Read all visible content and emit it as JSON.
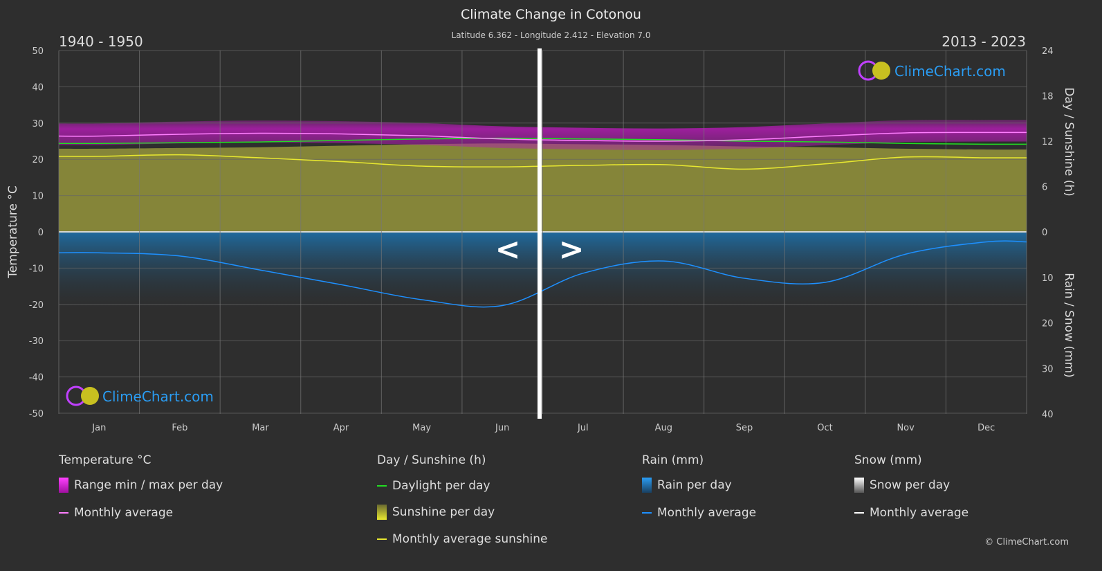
{
  "header": {
    "title": "Climate Change in Cotonou",
    "subtitle": "Latitude 6.362 - Longitude 2.412 - Elevation 7.0",
    "period_left": "1940 - 1950",
    "period_right": "2013 - 2023",
    "nav_prev": "<",
    "nav_next": ">"
  },
  "watermark": "ClimeChart.com",
  "copyright": "© ClimeChart.com",
  "colors": {
    "background": "#2e2e2e",
    "temperature_avg": "#ff7fff",
    "temperature_range": "#c21ec2",
    "daylight": "#22dd22",
    "sunshine_fill": "#8a8a3a",
    "sunshine_avg": "#e8e830",
    "rain_fill": "#1f6a9e",
    "rain_avg": "#1e90ff",
    "snow": "#ffffff"
  },
  "chart_data": {
    "type": "line",
    "categories": [
      "Jan",
      "Feb",
      "Mar",
      "Apr",
      "May",
      "Jun",
      "Jul",
      "Aug",
      "Sep",
      "Oct",
      "Nov",
      "Dec"
    ],
    "left_axis": {
      "label": "Temperature °C",
      "ylim": [
        -50,
        50
      ],
      "ticks": [
        50,
        40,
        30,
        20,
        10,
        0,
        -10,
        -20,
        -30,
        -40,
        -50
      ]
    },
    "right_axis_top": {
      "label": "Day / Sunshine (h)",
      "ylim": [
        0,
        24
      ],
      "ticks": [
        24,
        18,
        12,
        6,
        0
      ]
    },
    "right_axis_bottom": {
      "label": "Rain / Snow (mm)",
      "ylim": [
        0,
        40
      ],
      "ticks": [
        0,
        10,
        20,
        30,
        40
      ]
    },
    "grid": true,
    "series": [
      {
        "key": "temp",
        "values": [
          26.4,
          26.9,
          27.2,
          27.0,
          26.5,
          25.6,
          25.2,
          25.0,
          25.4,
          26.4,
          27.3,
          27.4
        ]
      },
      {
        "key": "daylight",
        "values": [
          11.7,
          11.8,
          11.9,
          12.1,
          12.3,
          12.4,
          12.3,
          12.2,
          12.0,
          11.9,
          11.7,
          11.6
        ]
      },
      {
        "key": "sunshine",
        "values": [
          10.0,
          10.2,
          9.8,
          9.3,
          8.7,
          8.6,
          8.8,
          8.9,
          8.3,
          9.0,
          9.9,
          9.8
        ]
      },
      {
        "key": "rain",
        "values": [
          4.6,
          5.3,
          8.4,
          11.6,
          14.9,
          16.2,
          9.1,
          6.4,
          10.2,
          11.1,
          4.9,
          2.2
        ]
      }
    ]
  },
  "legend": {
    "temperature": {
      "title": "Temperature °C",
      "items": [
        "Range min / max per day",
        "Monthly average"
      ]
    },
    "sunshine": {
      "title": "Day / Sunshine (h)",
      "items": [
        "Daylight per day",
        "Sunshine per day",
        "Monthly average sunshine"
      ]
    },
    "rain": {
      "title": "Rain (mm)",
      "items": [
        "Rain per day",
        "Monthly average"
      ]
    },
    "snow": {
      "title": "Snow (mm)",
      "items": [
        "Snow per day",
        "Monthly average"
      ]
    }
  }
}
